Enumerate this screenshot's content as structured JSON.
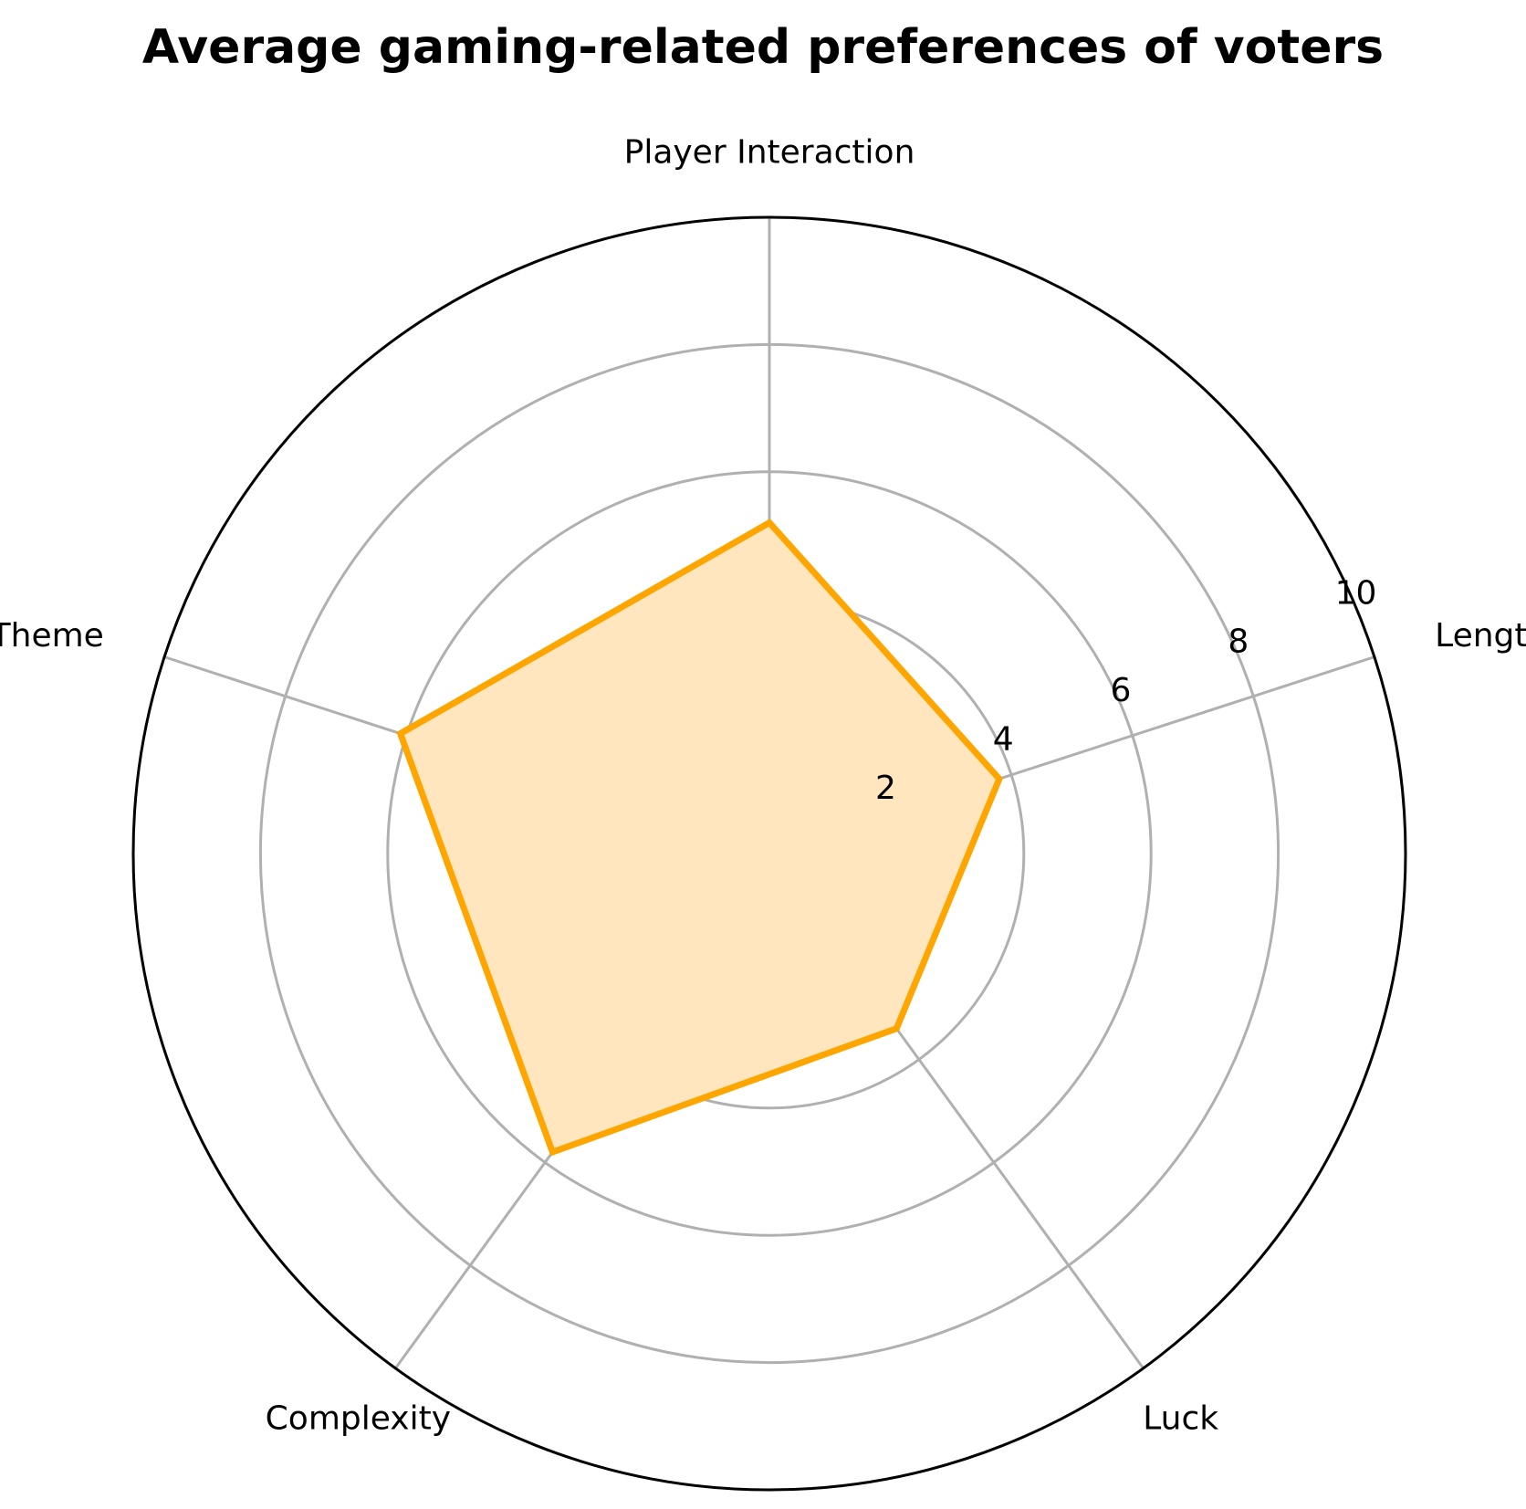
{
  "chart_data": {
    "type": "radar",
    "title": "Average gaming-related preferences of voters",
    "categories": [
      "Player Interaction",
      "Length",
      "Luck",
      "Complexity",
      "Theme"
    ],
    "series": [
      {
        "values": [
          5.2,
          3.8,
          3.4,
          5.8,
          6.1
        ]
      }
    ],
    "rlim": [
      0,
      10
    ],
    "rticks": [
      2,
      4,
      6,
      8,
      10
    ],
    "grid": true,
    "colors": {
      "line": "#FFA500",
      "fill": "#FFE6BF",
      "grid": "#B0B0B0",
      "frame": "#000000"
    }
  }
}
